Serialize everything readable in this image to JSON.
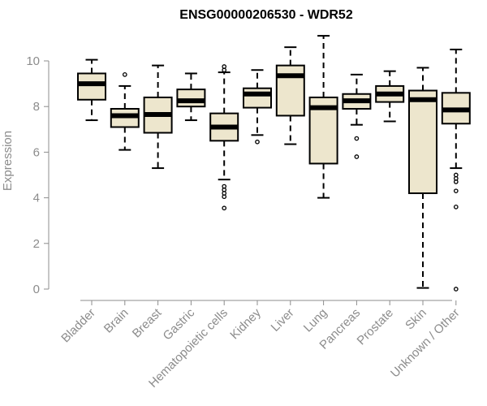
{
  "chart_data": {
    "type": "boxplot",
    "title": "ENSG00000206530 - WDR52",
    "xlabel": "",
    "ylabel": "Expression",
    "ylim": [
      0,
      11.2
    ],
    "yticks": [
      "0",
      "2",
      "4",
      "6",
      "8",
      "10"
    ],
    "categories": [
      "Bladder",
      "Brain",
      "Breast",
      "Gastric",
      "Hematopoietic cells",
      "Kidney",
      "Liver",
      "Lung",
      "Pancreas",
      "Prostate",
      "Skin",
      "Unknown / Other"
    ],
    "boxes": [
      {
        "name": "Bladder",
        "whisker_low": 7.4,
        "q1": 8.3,
        "median": 9.0,
        "q3": 9.45,
        "whisker_high": 10.05,
        "outliers": []
      },
      {
        "name": "Brain",
        "whisker_low": 6.1,
        "q1": 7.1,
        "median": 7.6,
        "q3": 7.9,
        "whisker_high": 8.9,
        "outliers": [
          9.4
        ]
      },
      {
        "name": "Breast",
        "whisker_low": 5.3,
        "q1": 6.85,
        "median": 7.65,
        "q3": 8.4,
        "whisker_high": 9.8,
        "outliers": []
      },
      {
        "name": "Gastric",
        "whisker_low": 7.4,
        "q1": 8.0,
        "median": 8.25,
        "q3": 8.75,
        "whisker_high": 9.45,
        "outliers": []
      },
      {
        "name": "Hematopoietic cells",
        "whisker_low": 4.8,
        "q1": 6.5,
        "median": 7.1,
        "q3": 7.7,
        "whisker_high": 9.5,
        "outliers": [
          9.6,
          9.75,
          4.5,
          4.35,
          4.2,
          4.05,
          3.55
        ]
      },
      {
        "name": "Kidney",
        "whisker_low": 6.75,
        "q1": 7.95,
        "median": 8.55,
        "q3": 8.8,
        "whisker_high": 9.6,
        "outliers": [
          6.45
        ]
      },
      {
        "name": "Liver",
        "whisker_low": 6.35,
        "q1": 7.6,
        "median": 9.35,
        "q3": 9.8,
        "whisker_high": 10.6,
        "outliers": []
      },
      {
        "name": "Lung",
        "whisker_low": 4.0,
        "q1": 5.5,
        "median": 7.95,
        "q3": 8.4,
        "whisker_high": 11.1,
        "outliers": []
      },
      {
        "name": "Pancreas",
        "whisker_low": 7.2,
        "q1": 7.9,
        "median": 8.25,
        "q3": 8.55,
        "whisker_high": 9.4,
        "outliers": [
          6.6,
          5.8
        ]
      },
      {
        "name": "Prostate",
        "whisker_low": 7.35,
        "q1": 8.2,
        "median": 8.55,
        "q3": 8.9,
        "whisker_high": 9.55,
        "outliers": []
      },
      {
        "name": "Skin",
        "whisker_low": 0.05,
        "q1": 4.2,
        "median": 8.3,
        "q3": 8.7,
        "whisker_high": 9.7,
        "outliers": []
      },
      {
        "name": "Unknown / Other",
        "whisker_low": 5.3,
        "q1": 7.25,
        "median": 7.85,
        "q3": 8.6,
        "whisker_high": 10.5,
        "outliers": [
          5.0,
          4.85,
          4.7,
          4.3,
          3.6,
          0.0
        ]
      }
    ],
    "colors": {
      "box_fill": "#ede6cd",
      "box_stroke": "#000000",
      "median": "#000000",
      "axis": "#8c8c8c"
    },
    "grid": false,
    "legend": "none"
  }
}
